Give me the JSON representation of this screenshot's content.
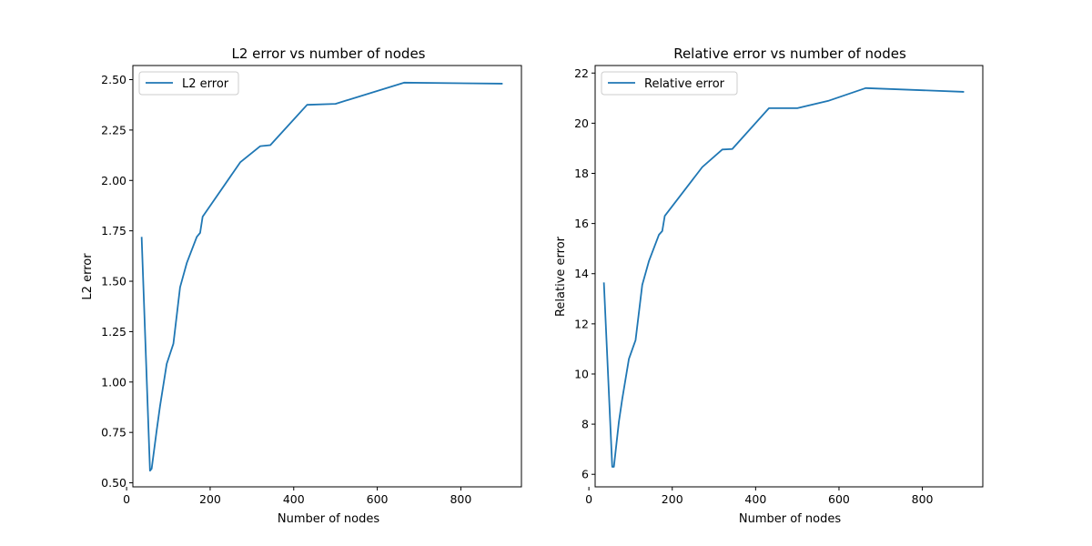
{
  "chart_data": [
    {
      "type": "line",
      "title": "L2 error vs number of nodes",
      "xlabel": "Number of nodes",
      "ylabel": "L2 error",
      "xlim": [
        15,
        945
      ],
      "ylim": [
        0.48,
        2.57
      ],
      "xticks": [
        0,
        200,
        400,
        600,
        800
      ],
      "xtick_labels": [
        "0",
        "200",
        "400",
        "600",
        "800"
      ],
      "yticks": [
        0.5,
        0.75,
        1.0,
        1.25,
        1.5,
        1.75,
        2.0,
        2.25,
        2.5
      ],
      "ytick_labels": [
        "0.50",
        "0.75",
        "1.00",
        "1.25",
        "1.50",
        "1.75",
        "2.00",
        "2.25",
        "2.50"
      ],
      "legend_position": "upper-left",
      "grid": false,
      "series": [
        {
          "name": "L2 error",
          "color": "#1f77b4",
          "x": [
            36,
            56,
            60,
            72,
            80,
            96,
            112,
            128,
            144,
            168,
            176,
            182,
            272,
            320,
            344,
            432,
            500,
            664,
            900
          ],
          "y": [
            1.72,
            0.56,
            0.57,
            0.76,
            0.88,
            1.09,
            1.19,
            1.47,
            1.59,
            1.72,
            1.74,
            1.82,
            2.09,
            2.17,
            2.175,
            2.375,
            2.38,
            2.485,
            2.48
          ]
        }
      ]
    },
    {
      "type": "line",
      "title": "Relative error vs number of nodes",
      "xlabel": "Number of nodes",
      "ylabel": "Relative error",
      "xlim": [
        15,
        945
      ],
      "ylim": [
        5.5,
        22.3
      ],
      "xticks": [
        0,
        200,
        400,
        600,
        800
      ],
      "xtick_labels": [
        "0",
        "200",
        "400",
        "600",
        "800"
      ],
      "yticks": [
        6,
        8,
        10,
        12,
        14,
        16,
        18,
        20,
        22
      ],
      "ytick_labels": [
        "6",
        "8",
        "10",
        "12",
        "14",
        "16",
        "18",
        "20",
        "22"
      ],
      "legend_position": "upper-left",
      "grid": false,
      "series": [
        {
          "name": "Relative error",
          "color": "#1f77b4",
          "x": [
            36,
            56,
            60,
            72,
            80,
            96,
            112,
            128,
            144,
            168,
            176,
            182,
            272,
            320,
            344,
            432,
            500,
            576,
            664,
            900
          ],
          "y": [
            13.65,
            6.3,
            6.3,
            8.1,
            9.0,
            10.6,
            11.35,
            13.55,
            14.5,
            15.55,
            15.7,
            16.3,
            18.25,
            18.95,
            18.97,
            20.6,
            20.6,
            20.9,
            21.4,
            21.25
          ]
        }
      ]
    }
  ]
}
